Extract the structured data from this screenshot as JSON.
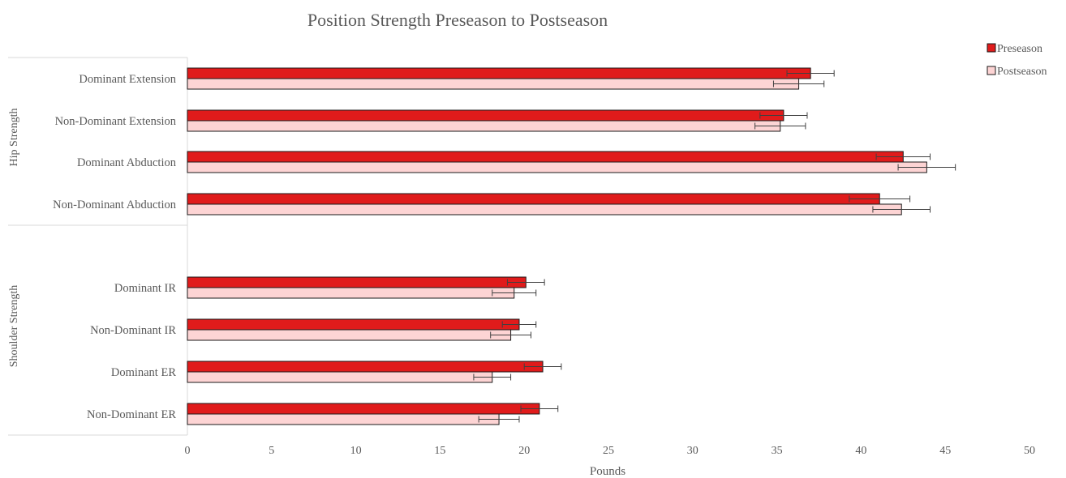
{
  "chart_data": {
    "type": "bar",
    "orientation": "horizontal",
    "title": "Position Strength Preseason to Postseason",
    "xlabel": "Pounds",
    "ylabel": "",
    "xlim": [
      0,
      50
    ],
    "xticks": [
      0,
      5,
      10,
      15,
      20,
      25,
      30,
      35,
      40,
      45,
      50
    ],
    "grid": false,
    "legend": "top-right",
    "groups": [
      {
        "label": "Hip Strength",
        "categories": [
          "Dominant Extension",
          "Non-Dominant Extension",
          "Dominant Abduction",
          "Non-Dominant Abduction"
        ]
      },
      {
        "label": "Shoulder Strength",
        "categories": [
          "Dominant IR",
          "Non-Dominant IR",
          "Dominant ER",
          "Non-Dominant ER"
        ]
      }
    ],
    "categories": [
      "Dominant Extension",
      "Non-Dominant Extension",
      "Dominant Abduction",
      "Non-Dominant Abduction",
      "Dominant IR",
      "Non-Dominant IR",
      "Dominant ER",
      "Non-Dominant ER"
    ],
    "series": [
      {
        "name": "Preseason",
        "color": "#e01b1b",
        "values": [
          37.0,
          35.4,
          42.5,
          41.1,
          20.1,
          19.7,
          21.1,
          20.9
        ],
        "error": [
          1.4,
          1.4,
          1.6,
          1.8,
          1.1,
          1.0,
          1.1,
          1.1
        ]
      },
      {
        "name": "Postseason",
        "color": "#fdd4d4",
        "values": [
          36.3,
          35.2,
          43.9,
          42.4,
          19.4,
          19.2,
          18.1,
          18.5
        ],
        "error": [
          1.5,
          1.5,
          1.7,
          1.7,
          1.3,
          1.2,
          1.1,
          1.2
        ]
      }
    ]
  }
}
